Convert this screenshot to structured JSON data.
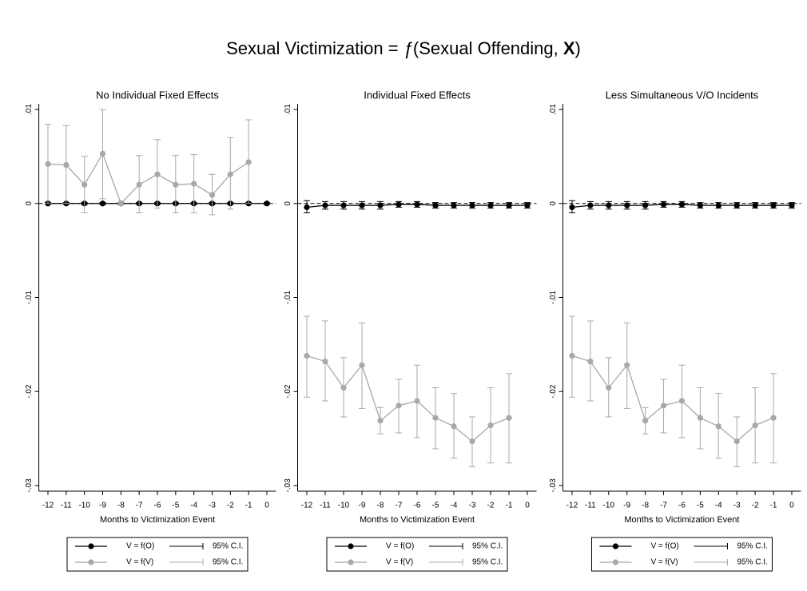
{
  "title": [
    "Sexual Victimization = ",
    "ƒ",
    "(Sexual Offending,  ",
    "X",
    ")"
  ],
  "chart_data": [
    {
      "type": "line",
      "title": "No Individual Fixed Effects",
      "xlabel": "Months to Victimization Event",
      "x": [
        -12,
        -11,
        -10,
        -9,
        -8,
        -7,
        -6,
        -5,
        -4,
        -3,
        -2,
        -1,
        0
      ],
      "xlim": [
        -12.5,
        0.5
      ],
      "xticks": [
        -12,
        -11,
        -10,
        -9,
        -8,
        -7,
        -6,
        -5,
        -4,
        -3,
        -2,
        -1,
        0
      ],
      "ylim": [
        -0.0306,
        0.0106
      ],
      "yticks": [
        {
          "value": 0.01,
          "label": ".01"
        },
        0,
        {
          "value": -0.01,
          "label": "-.01"
        },
        {
          "value": -0.02,
          "label": "-.02"
        },
        {
          "value": -0.03,
          "label": "-.03"
        }
      ],
      "hline": 0,
      "series": [
        {
          "name": "V = f(O)",
          "ci_name": "95% C.I.",
          "color": "#000000",
          "values": [
            0,
            0,
            0,
            0,
            0,
            0,
            0,
            0,
            0,
            0,
            0,
            0,
            0
          ],
          "lower": [
            -0.0001,
            -0.0001,
            -0.0001,
            -0.0001,
            -0.0001,
            -0.0001,
            -0.0001,
            -0.0001,
            -0.0001,
            -0.0001,
            -0.0001,
            -0.0001,
            -0.0001
          ],
          "upper": [
            0.0001,
            0.0001,
            0.0001,
            0.0001,
            0.0001,
            0.0001,
            0.0001,
            0.0001,
            0.0001,
            0.0001,
            0.0001,
            0.0001,
            0.0001
          ]
        },
        {
          "name": "V = f(V)",
          "ci_name": "95% C.I.",
          "color": "#a8a8a8",
          "values": [
            0.0042,
            0.0041,
            0.002,
            0.0053,
            0,
            0.002,
            0.0031,
            0.002,
            0.0021,
            0.0009,
            0.0031,
            0.0044,
            null
          ],
          "lower": [
            0,
            0,
            -0.001,
            0.0005,
            0,
            -0.001,
            -0.0005,
            -0.001,
            -0.001,
            -0.0012,
            -0.0006,
            0,
            null
          ],
          "upper": [
            0.0084,
            0.0083,
            0.005,
            0.01,
            0,
            0.0051,
            0.0068,
            0.0051,
            0.0052,
            0.0031,
            0.007,
            0.0089,
            null
          ]
        }
      ]
    },
    {
      "type": "line",
      "title": "Individual Fixed Effects",
      "xlabel": "Months to Victimization Event",
      "x": [
        -12,
        -11,
        -10,
        -9,
        -8,
        -7,
        -6,
        -5,
        -4,
        -3,
        -2,
        -1,
        0
      ],
      "xlim": [
        -12.5,
        0.5
      ],
      "xticks": [
        -12,
        -11,
        -10,
        -9,
        -8,
        -7,
        -6,
        -5,
        -4,
        -3,
        -2,
        -1,
        0
      ],
      "ylim": [
        -0.0306,
        0.0106
      ],
      "yticks": [
        {
          "value": 0.01,
          "label": ".01"
        },
        0,
        {
          "value": -0.01,
          "label": "-.01"
        },
        {
          "value": -0.02,
          "label": "-.02"
        },
        {
          "value": -0.03,
          "label": "-.03"
        }
      ],
      "hline": 0,
      "series": [
        {
          "name": "V = f(O)",
          "ci_name": "95% C.I.",
          "color": "#000000",
          "values": [
            -0.0004,
            -0.0002,
            -0.0002,
            -0.0002,
            -0.0002,
            -0.0001,
            -0.0001,
            -0.0002,
            -0.0002,
            -0.0002,
            -0.0002,
            -0.0002,
            -0.0002
          ],
          "lower": [
            -0.001,
            -0.0006,
            -0.0006,
            -0.0006,
            -0.0006,
            -0.0004,
            -0.0004,
            -0.0005,
            -0.0005,
            -0.0005,
            -0.0005,
            -0.0005,
            -0.0005
          ],
          "upper": [
            0.0003,
            0.0002,
            0.0002,
            0.0002,
            0.0002,
            0.0002,
            0.0002,
            0.0001,
            0.0001,
            0.0001,
            0.0001,
            0.0001,
            0.0001
          ]
        },
        {
          "name": "V = f(V)",
          "ci_name": "95% C.I.",
          "color": "#a8a8a8",
          "values": [
            -0.0162,
            -0.0168,
            -0.0196,
            -0.0172,
            -0.0231,
            -0.0215,
            -0.021,
            -0.0228,
            -0.0237,
            -0.0253,
            -0.0236,
            -0.0228,
            null
          ],
          "lower": [
            -0.0206,
            -0.021,
            -0.0227,
            -0.0218,
            -0.0245,
            -0.0244,
            -0.0249,
            -0.0261,
            -0.0271,
            -0.028,
            -0.0276,
            -0.0276,
            null
          ],
          "upper": [
            -0.012,
            -0.0125,
            -0.0164,
            -0.0127,
            -0.0217,
            -0.0187,
            -0.0172,
            -0.0196,
            -0.0202,
            -0.0227,
            -0.0196,
            -0.0181,
            null
          ]
        }
      ]
    },
    {
      "type": "line",
      "title": "Less Simultaneous V/O Incidents",
      "xlabel": "Months to Victimization Event",
      "x": [
        -12,
        -11,
        -10,
        -9,
        -8,
        -7,
        -6,
        -5,
        -4,
        -3,
        -2,
        -1,
        0
      ],
      "xlim": [
        -12.5,
        0.5
      ],
      "xticks": [
        -12,
        -11,
        -10,
        -9,
        -8,
        -7,
        -6,
        -5,
        -4,
        -3,
        -2,
        -1,
        0
      ],
      "ylim": [
        -0.0306,
        0.0106
      ],
      "yticks": [
        {
          "value": 0.01,
          "label": ".01"
        },
        0,
        {
          "value": -0.01,
          "label": "-.01"
        },
        {
          "value": -0.02,
          "label": "-.02"
        },
        {
          "value": -0.03,
          "label": "-.03"
        }
      ],
      "hline": 0,
      "series": [
        {
          "name": "V = f(O)",
          "ci_name": "95% C.I.",
          "color": "#000000",
          "values": [
            -0.0004,
            -0.0002,
            -0.0002,
            -0.0002,
            -0.0002,
            -0.0001,
            -0.0001,
            -0.0002,
            -0.0002,
            -0.0002,
            -0.0002,
            -0.0002,
            -0.0002
          ],
          "lower": [
            -0.001,
            -0.0006,
            -0.0006,
            -0.0006,
            -0.0006,
            -0.0004,
            -0.0004,
            -0.0005,
            -0.0005,
            -0.0005,
            -0.0005,
            -0.0005,
            -0.0005
          ],
          "upper": [
            0.0003,
            0.0002,
            0.0002,
            0.0002,
            0.0002,
            0.0002,
            0.0002,
            0.0001,
            0.0001,
            0.0001,
            0.0001,
            0.0001,
            0.0001
          ]
        },
        {
          "name": "V = f(V)",
          "ci_name": "95% C.I.",
          "color": "#a8a8a8",
          "values": [
            -0.0162,
            -0.0168,
            -0.0196,
            -0.0172,
            -0.0231,
            -0.0215,
            -0.021,
            -0.0228,
            -0.0237,
            -0.0253,
            -0.0236,
            -0.0228,
            null
          ],
          "lower": [
            -0.0206,
            -0.021,
            -0.0227,
            -0.0218,
            -0.0245,
            -0.0244,
            -0.0249,
            -0.0261,
            -0.0271,
            -0.028,
            -0.0276,
            -0.0276,
            null
          ],
          "upper": [
            -0.012,
            -0.0125,
            -0.0164,
            -0.0127,
            -0.0217,
            -0.0187,
            -0.0172,
            -0.0196,
            -0.0202,
            -0.0227,
            -0.0196,
            -0.0181,
            null
          ]
        }
      ]
    }
  ]
}
